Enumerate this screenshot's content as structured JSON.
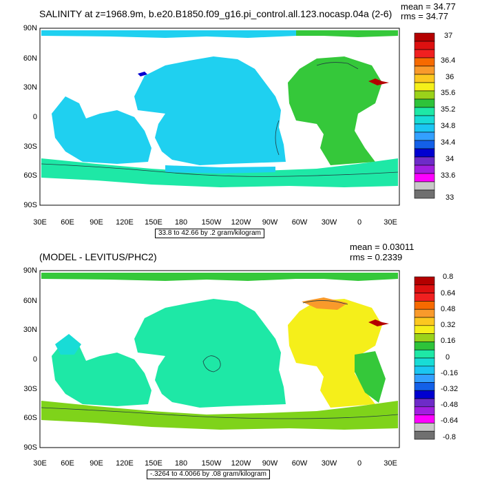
{
  "panels": [
    {
      "title": "SALINITY at z=1968.9m, b.e20.B1850.f09_g16.pi_control.all.123.nocasp.04a (2-6)",
      "mean": "mean = 34.77",
      "rms": "rms = 34.77",
      "range_note": "33.8 to 42.66 by .2 gram/kilogram",
      "lat_labels": [
        "90N",
        "60N",
        "30N",
        "0",
        "30S",
        "60S",
        "90S"
      ],
      "lon_labels": [
        "30E",
        "60E",
        "90E",
        "120E",
        "150E",
        "180",
        "150W",
        "120W",
        "90W",
        "60W",
        "30W",
        "0",
        "30E"
      ],
      "colorbar": {
        "labels": [
          "37",
          "36.4",
          "36",
          "35.6",
          "35.2",
          "34.8",
          "34.4",
          "34",
          "33.6",
          "33"
        ],
        "colors": [
          "#b40000",
          "#dd1010",
          "#f02020",
          "#f66a00",
          "#f99a2b",
          "#fcc820",
          "#f5ef1a",
          "#9ad21a",
          "#2ec33a",
          "#1ee8a6",
          "#18dcd6",
          "#1bc6f2",
          "#33a0ff",
          "#1360e8",
          "#0000d0",
          "#6e2bc8",
          "#a21fe0",
          "#ff00ff",
          "#c8c8c8",
          "#707070"
        ]
      }
    },
    {
      "title": "(MODEL - LEVITUS/PHC2)",
      "mean": "mean = 0.03011",
      "rms": "rms = 0.2339",
      "range_note": "-.3264 to 4.0066 by .08 gram/kilogram",
      "lat_labels": [
        "90N",
        "60N",
        "30N",
        "0",
        "30S",
        "60S",
        "90S"
      ],
      "lon_labels": [
        "30E",
        "60E",
        "90E",
        "120E",
        "150E",
        "180",
        "150W",
        "120W",
        "90W",
        "60W",
        "30W",
        "0",
        "30E"
      ],
      "colorbar": {
        "labels": [
          "0.8",
          "0.64",
          "0.48",
          "0.32",
          "0.16",
          "0",
          "-0.16",
          "-0.32",
          "-0.48",
          "-0.64",
          "-0.8"
        ],
        "colors": [
          "#b40000",
          "#dd1010",
          "#f02020",
          "#f66a00",
          "#f99a2b",
          "#fcc820",
          "#f5ef1a",
          "#9ad21a",
          "#2ec33a",
          "#1ee8a6",
          "#18dcd6",
          "#1bc6f2",
          "#33a0ff",
          "#1360e8",
          "#0000d0",
          "#6e2bc8",
          "#a21fe0",
          "#ff00ff",
          "#c8c8c8",
          "#707070"
        ]
      }
    }
  ]
}
